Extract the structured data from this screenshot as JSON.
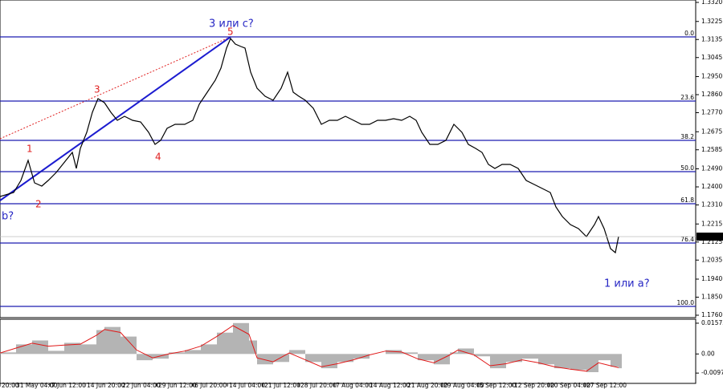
{
  "chart_data": [
    {
      "type": "line",
      "x": [
        0,
        1.7,
        2.6,
        3.5,
        4.3,
        5.2,
        6.0,
        7.0,
        7.8,
        9.0,
        9.5,
        10.0,
        10.8,
        11.5,
        12.2,
        13.0,
        13.8,
        14.6,
        15.5,
        16.5,
        17.5,
        18.5,
        19.3,
        20.0,
        20.8,
        21.8,
        23.0,
        24.0,
        24.8,
        25.8,
        26.8,
        27.5,
        28.2,
        28.7,
        29.3,
        30.0,
        30.5,
        31.2,
        32.0,
        33.0,
        34.0,
        35.0,
        35.8,
        36.5,
        37.2,
        38.0,
        39.0,
        40.0,
        41.0,
        42.0,
        43.0,
        44.0,
        45.0,
        46.0,
        47.0,
        48.0,
        49.0,
        50.0,
        51.0,
        51.8,
        52.5,
        53.5,
        54.5,
        55.5,
        56.5,
        57.5,
        58.3,
        59.2,
        60.0,
        60.8,
        61.6,
        62.5,
        63.5,
        64.5,
        65.5,
        66.5,
        67.5,
        68.5,
        69.2,
        70.0,
        71.0,
        72.0,
        73.0,
        74.0,
        74.5,
        75.2,
        76.0,
        76.6,
        77.0
      ],
      "values": [
        1.2352,
        1.2372,
        1.2432,
        1.2532,
        1.242,
        1.2404,
        1.2432,
        1.2472,
        1.2512,
        1.2572,
        1.2492,
        1.2592,
        1.2672,
        1.2772,
        1.284,
        1.282,
        1.2772,
        1.2732,
        1.2752,
        1.2732,
        1.2724,
        1.2672,
        1.2612,
        1.2632,
        1.2692,
        1.2712,
        1.2712,
        1.2732,
        1.2812,
        1.2872,
        1.2932,
        1.2992,
        1.3092,
        1.314,
        1.3112,
        1.31,
        1.3092,
        1.2972,
        1.2892,
        1.2852,
        1.2832,
        1.2892,
        1.2972,
        1.2872,
        1.2852,
        1.2832,
        1.2792,
        1.2712,
        1.2732,
        1.2732,
        1.2752,
        1.2732,
        1.2712,
        1.2712,
        1.2732,
        1.2732,
        1.274,
        1.2732,
        1.2752,
        1.2732,
        1.2672,
        1.2612,
        1.2612,
        1.2632,
        1.2712,
        1.2672,
        1.2612,
        1.2592,
        1.2572,
        1.2512,
        1.2492,
        1.2512,
        1.2512,
        1.2492,
        1.2432,
        1.2412,
        1.2392,
        1.2372,
        1.23,
        1.2252,
        1.2212,
        1.2192,
        1.2152,
        1.2212,
        1.2252,
        1.2192,
        1.2092,
        1.2072,
        1.2152
      ],
      "color": "#000000",
      "xlim": [
        0,
        86.6
      ],
      "xticks": [
        {
          "value": 0,
          "label": "20:00"
        },
        {
          "value": 1.8,
          "label": "31 May 04:00"
        },
        {
          "value": 6.2,
          "label": "7 Jun 12:00"
        },
        {
          "value": 10.6,
          "label": "14 Jun 20:00"
        },
        {
          "value": 15.0,
          "label": "22 Jun 04:00"
        },
        {
          "value": 19.5,
          "label": "29 Jun 12:00"
        },
        {
          "value": 24.0,
          "label": "6 Jul 20:00"
        },
        {
          "value": 28.3,
          "label": "14 Jul 04:00"
        },
        {
          "value": 32.7,
          "label": "21 Jul 12:00"
        },
        {
          "value": 37.2,
          "label": "28 Jul 20:00"
        },
        {
          "value": 41.6,
          "label": "7 Aug 04:00"
        },
        {
          "value": 45.8,
          "label": "14 Aug 12:00"
        },
        {
          "value": 50.5,
          "label": "21 Aug 20:00"
        },
        {
          "value": 55.0,
          "label": "29 Aug 04:00"
        },
        {
          "value": 59.5,
          "label": "5 Sep 12:00"
        },
        {
          "value": 63.8,
          "label": "12 Sep 20:00"
        },
        {
          "value": 68.3,
          "label": "20 Sep 04:00"
        },
        {
          "value": 72.8,
          "label": "27 Sep 12:00"
        }
      ],
      "ylim": [
        1.1748,
        1.3332
      ],
      "yticks": [
        {
          "value": 1.332,
          "label": "1.3320"
        },
        1.3225,
        1.3135,
        1.3045,
        {
          "value": 1.295,
          "label": "1.2950"
        },
        {
          "value": 1.286,
          "label": "1.2860"
        },
        {
          "value": 1.277,
          "label": "1.2770"
        },
        1.2675,
        1.2585,
        {
          "value": 1.249,
          "label": "1.2490"
        },
        {
          "value": 1.24,
          "label": "1.2400"
        },
        {
          "value": 1.231,
          "label": "1.2310"
        },
        1.2215,
        1.2125,
        1.2035,
        {
          "value": 1.194,
          "label": "1.1940"
        },
        {
          "value": 1.185,
          "label": "1.1850"
        },
        {
          "value": 1.176,
          "label": "1.1760"
        }
      ],
      "levels": [
        {
          "label": "0.0",
          "value": 1.3148
        },
        {
          "label": "23.6",
          "value": 1.2828
        },
        {
          "label": "38.2",
          "value": 1.2632
        },
        {
          "label": "50.0",
          "value": 1.2476
        },
        {
          "label": "61.8",
          "value": 1.2316
        },
        {
          "label": "76.4",
          "value": 1.212
        },
        {
          "label": "100.0",
          "value": 1.1804
        }
      ],
      "level_color": "#1c1cb0",
      "last_price": 1.2152,
      "annotations": [
        "3 или с?",
        "5",
        "3",
        "1",
        "2",
        "4",
        "b?",
        "1 или а?"
      ]
    },
    {
      "type": "bar",
      "x": [
        0,
        2,
        4,
        6,
        8,
        10,
        12,
        13,
        15,
        17,
        19,
        21,
        23,
        25,
        27,
        29,
        31,
        32,
        34,
        36,
        38,
        40,
        42,
        44,
        46,
        48,
        50,
        52,
        54,
        56,
        57,
        59,
        61,
        63,
        65,
        67,
        69,
        71,
        73,
        74.5,
        76,
        77
      ],
      "values": [
        0.0008,
        0.0049,
        0.0069,
        0.0016,
        0.0057,
        0.0049,
        0.0122,
        0.0138,
        0.0089,
        -0.0032,
        -0.0024,
        0.0008,
        0.002,
        0.0049,
        0.0109,
        0.0158,
        0.0069,
        -0.0053,
        -0.0041,
        0.002,
        -0.0041,
        -0.0073,
        -0.0041,
        -0.0024,
        0,
        0.002,
        0.0008,
        -0.0032,
        -0.0053,
        0.0008,
        0.0028,
        -0.0012,
        -0.0073,
        -0.0041,
        -0.0024,
        -0.0053,
        -0.0073,
        -0.0081,
        -0.0093,
        -0.0032,
        -0.0065,
        -0.0073
      ],
      "line_values": [
        0.0005,
        0.003,
        0.0055,
        0.004,
        0.0045,
        0.005,
        0.0095,
        0.0125,
        0.011,
        0.002,
        -0.002,
        0,
        0.0015,
        0.004,
        0.009,
        0.0145,
        0.01,
        -0.002,
        -0.004,
        0.0005,
        -0.003,
        -0.0065,
        -0.005,
        -0.003,
        -0.0005,
        0.0015,
        0.001,
        -0.0025,
        -0.0045,
        -0.0005,
        0.002,
        -0.0005,
        -0.006,
        -0.005,
        -0.003,
        -0.0045,
        -0.0065,
        -0.0078,
        -0.0088,
        -0.0045,
        -0.006,
        -0.007
      ],
      "color": "#b4b4b4",
      "line_color": "#e01818",
      "xlim": [
        0,
        86.6
      ],
      "ylim": [
        -0.01504,
        0.01776
      ],
      "yticks": [
        0.01573,
        {
          "value": 0,
          "label": "0.00"
        },
        -0.00977
      ]
    }
  ]
}
